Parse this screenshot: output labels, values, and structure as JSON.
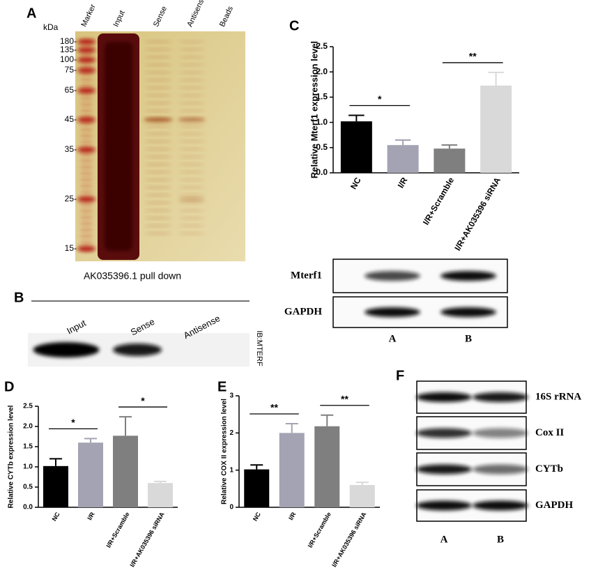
{
  "panel_labels": [
    "A",
    "B",
    "C",
    "D",
    "E",
    "F"
  ],
  "panel_a": {
    "unit": "kDa",
    "lanes": [
      "Marker",
      "Input",
      "Sense",
      "Antisense",
      "Beads"
    ],
    "markers": [
      "180-",
      "135-",
      "100-",
      "75-",
      "65-",
      "45-",
      "35-",
      "25-",
      "15-"
    ],
    "caption": "AK035396.1 pull down"
  },
  "panel_b": {
    "lanes": [
      "Input",
      "Sense",
      "Antisense"
    ],
    "antibody": "IB:MTERF"
  },
  "panel_c_blot": {
    "rows": [
      "Mterf1",
      "GAPDH"
    ],
    "columns": [
      "A",
      "B"
    ]
  },
  "panel_f_blot": {
    "rows": [
      "16S rRNA",
      "Cox II",
      "CYTb",
      "GAPDH"
    ],
    "columns": [
      "A",
      "B"
    ]
  },
  "chart_data": [
    {
      "type": "bar",
      "y_label": "Relative Mterf1 expression level",
      "categories": [
        "NC",
        "I/R",
        "I/R+Scramble",
        "I/R+AK035396 siRNA"
      ],
      "values": [
        1.02,
        0.55,
        0.48,
        1.73
      ],
      "errors": [
        0.12,
        0.1,
        0.07,
        0.26
      ],
      "colors": [
        "#000000",
        "#a3a3b3",
        "#7f7f7f",
        "#d9d9d9"
      ],
      "ylim": [
        0,
        2.5
      ],
      "yticks": [
        {
          "value": 0,
          "label": "0.0"
        },
        {
          "value": 0.5,
          "label": "0.5"
        },
        {
          "value": 1,
          "label": "1.0"
        },
        {
          "value": 1.5,
          "label": "1.5"
        },
        {
          "value": 2,
          "label": "2.0"
        },
        {
          "value": 2.5,
          "label": "2.5"
        }
      ],
      "annotations": [
        "*",
        "**"
      ]
    },
    {
      "type": "bar",
      "y_label": "Relative CYTb expression level",
      "categories": [
        "NC",
        "I/R",
        "I/R+Scramble",
        "I/R+AK035396 siRNA"
      ],
      "values": [
        1.02,
        1.6,
        1.77,
        0.6
      ],
      "errors": [
        0.18,
        0.1,
        0.47,
        0.04
      ],
      "colors": [
        "#000000",
        "#a3a3b3",
        "#7f7f7f",
        "#d9d9d9"
      ],
      "ylim": [
        0,
        2.5
      ],
      "yticks": [
        {
          "value": 0,
          "label": "0.0"
        },
        {
          "value": 0.5,
          "label": "0.5"
        },
        {
          "value": 1,
          "label": "1.0"
        },
        {
          "value": 1.5,
          "label": "1.5"
        },
        {
          "value": 2,
          "label": "2.0"
        },
        {
          "value": 2.5,
          "label": "2.5"
        }
      ],
      "annotations": [
        "*",
        "*"
      ]
    },
    {
      "type": "bar",
      "y_label": "Relative COX II expression level",
      "categories": [
        "NC",
        "I/R",
        "I/R+Scramble",
        "I/R+AK035396 siRNA"
      ],
      "values": [
        1.02,
        2.0,
        2.18,
        0.6
      ],
      "errors": [
        0.12,
        0.25,
        0.3,
        0.07
      ],
      "colors": [
        "#000000",
        "#a3a3b3",
        "#7f7f7f",
        "#d9d9d9"
      ],
      "ylim": [
        0,
        3
      ],
      "yticks": [
        0,
        1,
        2,
        3
      ],
      "annotations": [
        "**",
        "**"
      ]
    }
  ]
}
